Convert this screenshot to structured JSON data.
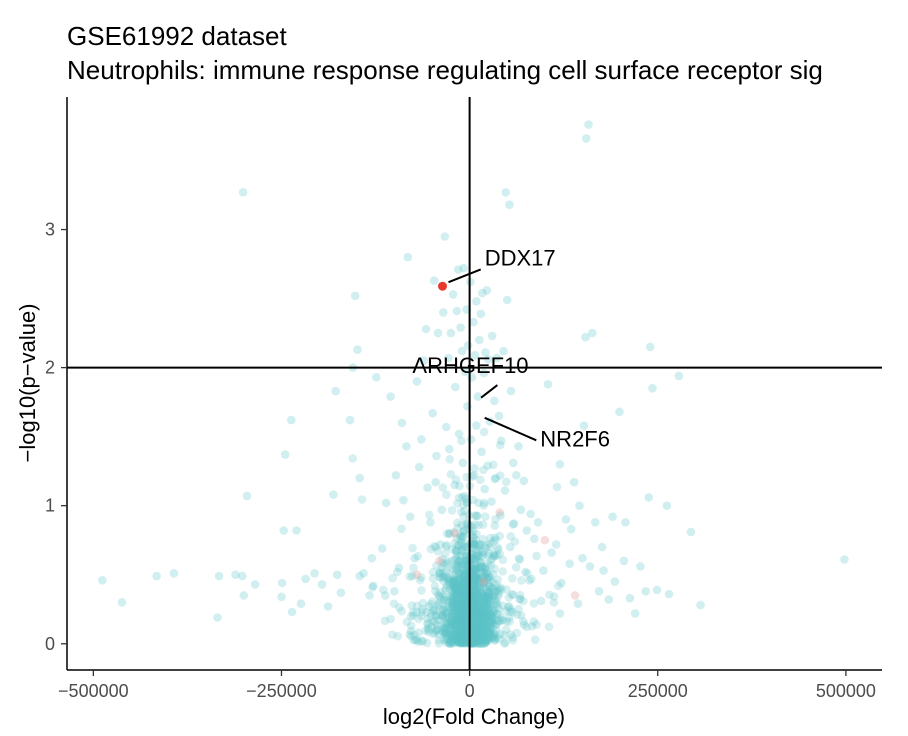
{
  "chart_data": {
    "type": "scatter",
    "title": "GSE61992 dataset",
    "subtitle": "Neutrophils: immune response regulating cell surface receptor sig",
    "xlabel": "log2(Fold Change)",
    "ylabel": "−log10(p−value)",
    "xlim": [
      -535000,
      548000
    ],
    "ylim": [
      -0.19,
      3.96
    ],
    "x_ticks": [
      -500000,
      -250000,
      0,
      250000,
      500000
    ],
    "x_tick_labels": [
      "−500000",
      "−250000",
      "0",
      "250000",
      "500000"
    ],
    "y_ticks": [
      0,
      1,
      2,
      3
    ],
    "y_tick_labels": [
      "0",
      "1",
      "2",
      "3"
    ],
    "reference_lines": {
      "vertical_x": 0,
      "horizontal_y": 2
    },
    "grid": false,
    "legend": "none",
    "colors": {
      "background_points": "#5bc4c8",
      "highlight": "#e8392d",
      "faint_highlight": "#e8a0a0",
      "lines": "#000000"
    },
    "highlighted": [
      {
        "gene": "DDX17",
        "x": -36000,
        "y": 2.59,
        "label_x": 20000,
        "label_y": 2.74
      },
      {
        "gene": "ARHGEF10",
        "x": 10000,
        "y": 1.84,
        "label_x": -76000,
        "label_y": 1.96
      },
      {
        "gene": "NR2F6",
        "x": 20000,
        "y": 1.68,
        "label_x": 94000,
        "label_y": 1.43
      }
    ],
    "points": [
      [
        -488000,
        0.46
      ],
      [
        -462000,
        0.3
      ],
      [
        -416000,
        0.49
      ],
      [
        -393000,
        0.51
      ],
      [
        -335000,
        0.19
      ],
      [
        -333000,
        0.49
      ],
      [
        -311000,
        0.5
      ],
      [
        -302000,
        0.49
      ],
      [
        -300000,
        0.35
      ],
      [
        -301000,
        3.27
      ],
      [
        -296000,
        1.07
      ],
      [
        -285000,
        0.43
      ],
      [
        -250000,
        0.34
      ],
      [
        -249000,
        0.44
      ],
      [
        -247000,
        0.82
      ],
      [
        -245000,
        1.37
      ],
      [
        -237000,
        1.62
      ],
      [
        -236000,
        0.23
      ],
      [
        -230000,
        0.82
      ],
      [
        -224000,
        0.29
      ],
      [
        -218000,
        0.47
      ],
      [
        -206000,
        0.51
      ],
      [
        -196000,
        0.43
      ],
      [
        -188000,
        0.27
      ],
      [
        -181000,
        1.08
      ],
      [
        -178000,
        1.83
      ],
      [
        -176000,
        0.5
      ],
      [
        -171000,
        0.37
      ],
      [
        -159000,
        1.62
      ],
      [
        -155000,
        2.0
      ],
      [
        -152000,
        2.52
      ],
      [
        -149000,
        2.13
      ],
      [
        -146000,
        0.49
      ],
      [
        -141000,
        0.51
      ],
      [
        -133000,
        0.35
      ],
      [
        -130000,
        0.62
      ],
      [
        -128000,
        0.42
      ],
      [
        -116000,
        0.69
      ],
      [
        -112000,
        0.35
      ],
      [
        -105000,
        1.79
      ],
      [
        -98000,
        1.22
      ],
      [
        -94000,
        0.55
      ],
      [
        -90000,
        1.6
      ],
      [
        -84000,
        1.43
      ],
      [
        -82000,
        2.8
      ],
      [
        -79000,
        0.92
      ],
      [
        -76000,
        0.49
      ],
      [
        -70000,
        1.9
      ],
      [
        -64000,
        1.48
      ],
      [
        -61000,
        2.05
      ],
      [
        -58000,
        2.28
      ],
      [
        -56000,
        1.13
      ],
      [
        -52000,
        0.88
      ],
      [
        -49000,
        1.67
      ],
      [
        -47000,
        2.63
      ],
      [
        -45000,
        1.17
      ],
      [
        -42000,
        2.25
      ],
      [
        -39000,
        0.72
      ],
      [
        -35000,
        2.4
      ],
      [
        -33000,
        2.95
      ],
      [
        -31000,
        1.57
      ],
      [
        -28000,
        2.07
      ],
      [
        -25000,
        2.25
      ],
      [
        -22000,
        2.53
      ],
      [
        -19000,
        1.86
      ],
      [
        -17000,
        2.41
      ],
      [
        -15000,
        2.71
      ],
      [
        -12000,
        2.29
      ],
      [
        -10000,
        2.12
      ],
      [
        -8000,
        2.72
      ],
      [
        -6000,
        1.97
      ],
      [
        -4000,
        2.42
      ],
      [
        -2000,
        2.16
      ],
      [
        1000,
        2.62
      ],
      [
        3000,
        1.93
      ],
      [
        5000,
        2.33
      ],
      [
        7000,
        2.09
      ],
      [
        9000,
        2.48
      ],
      [
        11000,
        1.79
      ],
      [
        13000,
        2.2
      ],
      [
        15000,
        2.39
      ],
      [
        17000,
        2.54
      ],
      [
        19000,
        1.96
      ],
      [
        21000,
        2.11
      ],
      [
        23000,
        2.56
      ],
      [
        25000,
        2.06
      ],
      [
        27000,
        1.61
      ],
      [
        30000,
        2.23
      ],
      [
        33000,
        1.76
      ],
      [
        36000,
        2.07
      ],
      [
        39000,
        1.65
      ],
      [
        42000,
        1.47
      ],
      [
        45000,
        2.12
      ],
      [
        48000,
        3.27
      ],
      [
        50000,
        2.49
      ],
      [
        53000,
        3.18
      ],
      [
        55000,
        1.83
      ],
      [
        58000,
        1.31
      ],
      [
        62000,
        1.22
      ],
      [
        65000,
        1.43
      ],
      [
        68000,
        0.97
      ],
      [
        72000,
        1.18
      ],
      [
        76000,
        0.82
      ],
      [
        81000,
        0.94
      ],
      [
        86000,
        0.76
      ],
      [
        91000,
        0.88
      ],
      [
        98000,
        0.53
      ],
      [
        104000,
        1.88
      ],
      [
        109000,
        0.66
      ],
      [
        115000,
        0.72
      ],
      [
        122000,
        0.44
      ],
      [
        128000,
        0.9
      ],
      [
        133000,
        0.58
      ],
      [
        139000,
        1.17
      ],
      [
        146000,
        1.0
      ],
      [
        150000,
        0.62
      ],
      [
        152000,
        1.58
      ],
      [
        154000,
        2.22
      ],
      [
        155000,
        3.66
      ],
      [
        158000,
        3.76
      ],
      [
        163000,
        2.25
      ],
      [
        167000,
        0.88
      ],
      [
        172000,
        0.38
      ],
      [
        178000,
        0.53
      ],
      [
        185000,
        0.32
      ],
      [
        193000,
        0.45
      ],
      [
        199000,
        1.68
      ],
      [
        207000,
        0.88
      ],
      [
        213000,
        0.33
      ],
      [
        220000,
        0.22
      ],
      [
        227000,
        0.56
      ],
      [
        234000,
        0.38
      ],
      [
        238000,
        1.06
      ],
      [
        240000,
        2.15
      ],
      [
        243000,
        1.85
      ],
      [
        249000,
        0.39
      ],
      [
        262000,
        1.0
      ],
      [
        265000,
        0.36
      ],
      [
        278000,
        1.94
      ],
      [
        294000,
        0.81
      ],
      [
        307000,
        0.28
      ],
      [
        498000,
        0.61
      ],
      [
        -124000,
        1.93
      ],
      [
        -146000,
        1.2
      ],
      [
        -111000,
        1.02
      ],
      [
        -100000,
        0.38
      ],
      [
        -88000,
        1.04
      ],
      [
        -73000,
        0.62
      ],
      [
        -67000,
        1.28
      ],
      [
        -44000,
        1.36
      ],
      [
        -37000,
        0.97
      ],
      [
        -27000,
        1.41
      ],
      [
        -20000,
        1.15
      ],
      [
        -14000,
        1.52
      ],
      [
        -9000,
        1.31
      ],
      [
        -5000,
        1.05
      ],
      [
        -3000,
        1.72
      ],
      [
        2000,
        1.48
      ],
      [
        6000,
        1.22
      ],
      [
        9000,
        1.58
      ],
      [
        12000,
        1.02
      ],
      [
        16000,
        1.39
      ],
      [
        20000,
        1.12
      ],
      [
        24000,
        1.29
      ],
      [
        29000,
        1.03
      ],
      [
        35000,
        1.2
      ],
      [
        41000,
        0.93
      ],
      [
        47000,
        1.11
      ],
      [
        54000,
        0.7
      ],
      [
        59000,
        0.87
      ],
      [
        67000,
        0.61
      ],
      [
        74000,
        0.52
      ],
      [
        82000,
        0.47
      ],
      [
        95000,
        0.31
      ],
      [
        120000,
        0.22
      ],
      [
        144000,
        0.29
      ],
      [
        160000,
        0.56
      ],
      [
        176000,
        0.7
      ],
      [
        190000,
        0.92
      ],
      [
        205000,
        0.6
      ],
      [
        120000,
        1.3
      ],
      [
        135000,
        0.83
      ]
    ]
  }
}
